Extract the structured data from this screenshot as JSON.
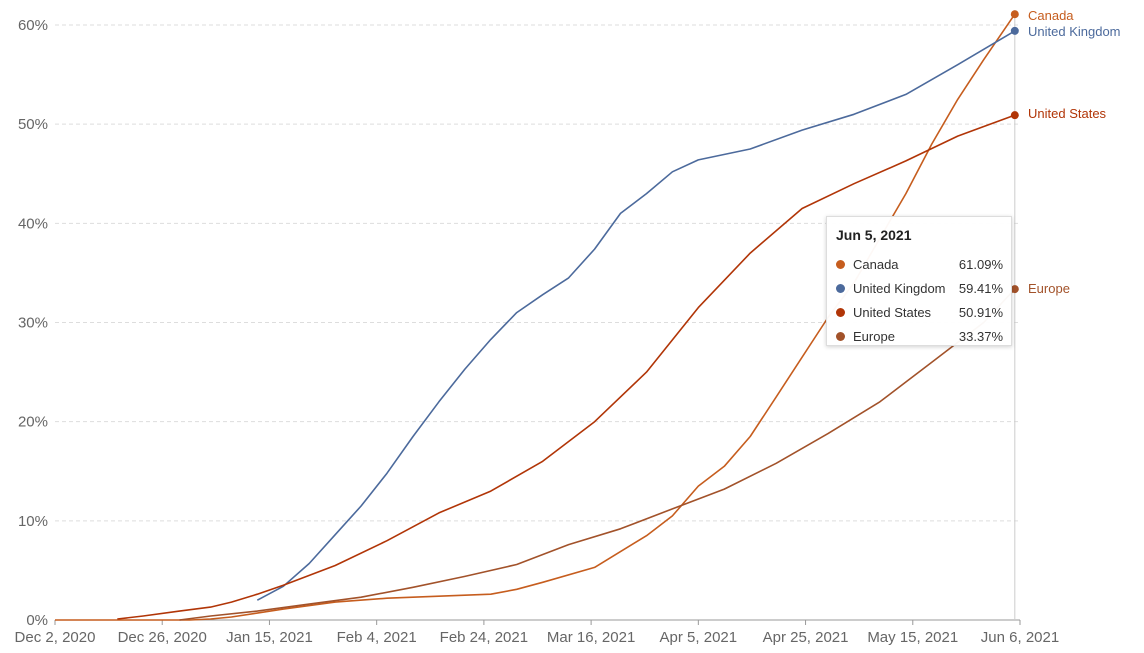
{
  "chart_data": {
    "type": "line",
    "x_ticks": [
      "Dec 2, 2020",
      "Dec 26, 2020",
      "Jan 15, 2021",
      "Feb 4, 2021",
      "Feb 24, 2021",
      "Mar 16, 2021",
      "Apr 5, 2021",
      "Apr 25, 2021",
      "May 15, 2021",
      "Jun 6, 2021"
    ],
    "y_ticks": [
      "0%",
      "10%",
      "20%",
      "30%",
      "40%",
      "50%",
      "60%"
    ],
    "ylim": [
      0,
      60
    ],
    "xlim": [
      "2020-12-02",
      "2021-06-06"
    ],
    "grid": "horizontal dashed",
    "legend": "end labels at right of lines",
    "series": [
      {
        "name": "Canada",
        "color": "#c65d1e",
        "points": [
          [
            "2020-12-02",
            0
          ],
          [
            "2020-12-28",
            0
          ],
          [
            "2021-01-01",
            0.1
          ],
          [
            "2021-01-05",
            0.3
          ],
          [
            "2021-01-10",
            0.7
          ],
          [
            "2021-01-15",
            1.1
          ],
          [
            "2021-01-25",
            1.8
          ],
          [
            "2021-02-04",
            2.2
          ],
          [
            "2021-02-14",
            2.4
          ],
          [
            "2021-02-24",
            2.6
          ],
          [
            "2021-03-01",
            3.1
          ],
          [
            "2021-03-06",
            3.8
          ],
          [
            "2021-03-16",
            5.3
          ],
          [
            "2021-03-26",
            8.5
          ],
          [
            "2021-03-31",
            10.5
          ],
          [
            "2021-04-05",
            13.5
          ],
          [
            "2021-04-10",
            15.5
          ],
          [
            "2021-04-15",
            18.5
          ],
          [
            "2021-04-20",
            22.5
          ],
          [
            "2021-04-25",
            26.5
          ],
          [
            "2021-04-30",
            30.5
          ],
          [
            "2021-05-05",
            34
          ],
          [
            "2021-05-10",
            38.5
          ],
          [
            "2021-05-15",
            43
          ],
          [
            "2021-05-20",
            48
          ],
          [
            "2021-05-25",
            52.5
          ],
          [
            "2021-05-30",
            56.5
          ],
          [
            "2021-06-05",
            61.09
          ]
        ]
      },
      {
        "name": "United Kingdom",
        "color": "#4c6a9c",
        "points": [
          [
            "2021-01-10",
            2
          ],
          [
            "2021-01-15",
            3.4
          ],
          [
            "2021-01-20",
            5.7
          ],
          [
            "2021-01-25",
            8.6
          ],
          [
            "2021-01-30",
            11.5
          ],
          [
            "2021-02-04",
            14.8
          ],
          [
            "2021-02-09",
            18.5
          ],
          [
            "2021-02-14",
            22
          ],
          [
            "2021-02-19",
            25.3
          ],
          [
            "2021-02-24",
            28.3
          ],
          [
            "2021-03-01",
            31
          ],
          [
            "2021-03-06",
            32.8
          ],
          [
            "2021-03-11",
            34.5
          ],
          [
            "2021-03-16",
            37.4
          ],
          [
            "2021-03-21",
            41
          ],
          [
            "2021-03-26",
            43
          ],
          [
            "2021-03-31",
            45.2
          ],
          [
            "2021-04-05",
            46.4
          ],
          [
            "2021-04-15",
            47.5
          ],
          [
            "2021-04-25",
            49.4
          ],
          [
            "2021-05-05",
            51
          ],
          [
            "2021-05-15",
            53
          ],
          [
            "2021-05-25",
            56
          ],
          [
            "2021-06-05",
            59.41
          ]
        ]
      },
      {
        "name": "United States",
        "color": "#b13507",
        "points": [
          [
            "2020-12-14",
            0.1
          ],
          [
            "2020-12-19",
            0.4
          ],
          [
            "2020-12-26",
            0.9
          ],
          [
            "2021-01-01",
            1.3
          ],
          [
            "2021-01-05",
            1.8
          ],
          [
            "2021-01-10",
            2.6
          ],
          [
            "2021-01-15",
            3.5
          ],
          [
            "2021-01-25",
            5.5
          ],
          [
            "2021-02-04",
            8
          ],
          [
            "2021-02-14",
            10.8
          ],
          [
            "2021-02-24",
            13
          ],
          [
            "2021-03-06",
            16
          ],
          [
            "2021-03-16",
            20
          ],
          [
            "2021-03-26",
            25
          ],
          [
            "2021-04-05",
            31.5
          ],
          [
            "2021-04-15",
            37
          ],
          [
            "2021-04-25",
            41.5
          ],
          [
            "2021-05-05",
            44
          ],
          [
            "2021-05-15",
            46.3
          ],
          [
            "2021-05-25",
            48.8
          ],
          [
            "2021-06-05",
            50.91
          ]
        ]
      },
      {
        "name": "Europe",
        "color": "#a2522a",
        "points": [
          [
            "2020-12-26",
            0
          ],
          [
            "2021-01-01",
            0.4
          ],
          [
            "2021-01-10",
            0.9
          ],
          [
            "2021-01-20",
            1.6
          ],
          [
            "2021-01-30",
            2.3
          ],
          [
            "2021-02-09",
            3.3
          ],
          [
            "2021-02-19",
            4.4
          ],
          [
            "2021-03-01",
            5.6
          ],
          [
            "2021-03-11",
            7.6
          ],
          [
            "2021-03-21",
            9.2
          ],
          [
            "2021-03-31",
            11.2
          ],
          [
            "2021-04-10",
            13.2
          ],
          [
            "2021-04-20",
            15.8
          ],
          [
            "2021-04-30",
            18.8
          ],
          [
            "2021-05-10",
            22
          ],
          [
            "2021-05-20",
            26
          ],
          [
            "2021-05-30",
            30
          ],
          [
            "2021-06-05",
            33.37
          ]
        ]
      }
    ]
  },
  "tooltip": {
    "date": "Jun 5, 2021",
    "rows": [
      {
        "name": "Canada",
        "value": "61.09%",
        "color": "#c65d1e"
      },
      {
        "name": "United Kingdom",
        "value": "59.41%",
        "color": "#4c6a9c"
      },
      {
        "name": "United States",
        "value": "50.91%",
        "color": "#b13507"
      },
      {
        "name": "Europe",
        "value": "33.37%",
        "color": "#a2522a"
      }
    ]
  }
}
